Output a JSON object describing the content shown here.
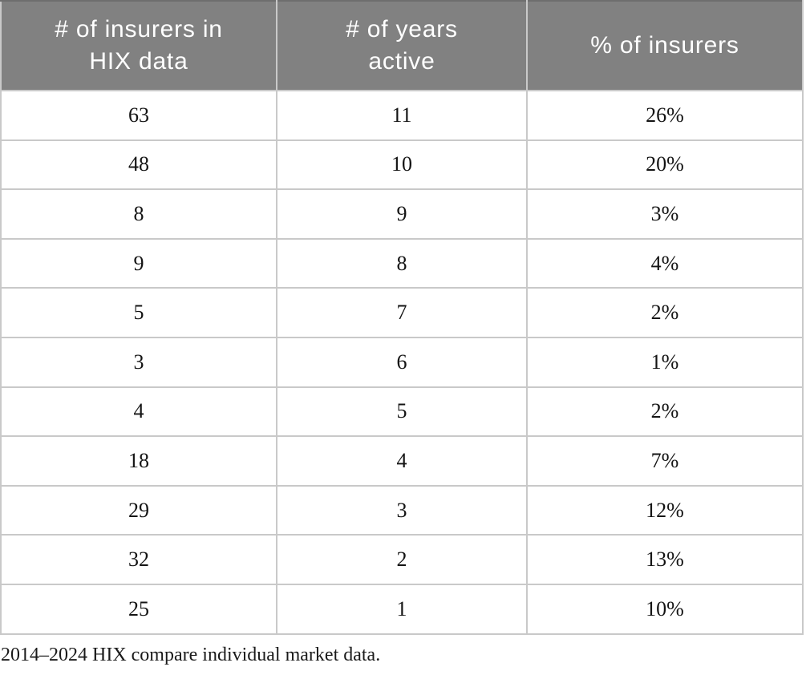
{
  "table": {
    "columns": [
      {
        "label": "# of insurers in\nHIX data"
      },
      {
        "label": "# of years\nactive"
      },
      {
        "label": "% of insurers"
      }
    ],
    "rows": [
      {
        "insurers": "63",
        "years": "11",
        "pct": "26%"
      },
      {
        "insurers": "48",
        "years": "10",
        "pct": "20%"
      },
      {
        "insurers": "8",
        "years": "9",
        "pct": "3%"
      },
      {
        "insurers": "9",
        "years": "8",
        "pct": "4%"
      },
      {
        "insurers": "5",
        "years": "7",
        "pct": "2%"
      },
      {
        "insurers": "3",
        "years": "6",
        "pct": "1%"
      },
      {
        "insurers": "4",
        "years": "5",
        "pct": "2%"
      },
      {
        "insurers": "18",
        "years": "4",
        "pct": "7%"
      },
      {
        "insurers": "29",
        "years": "3",
        "pct": "12%"
      },
      {
        "insurers": "32",
        "years": "2",
        "pct": "13%"
      },
      {
        "insurers": "25",
        "years": "1",
        "pct": "10%"
      }
    ]
  },
  "caption": "2014–2024 HIX compare individual market data.",
  "colors": {
    "header_bg": "#818181",
    "header_text": "#ffffff",
    "cell_border": "#c9c9c9",
    "outer_border": "#b2b2b2",
    "body_text": "#141414"
  }
}
